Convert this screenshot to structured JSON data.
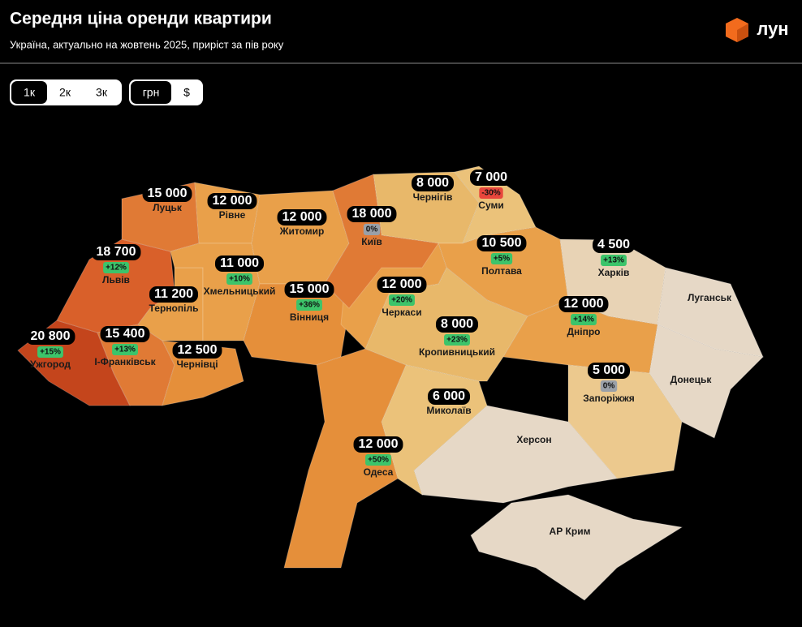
{
  "header": {
    "title": "Середня ціна оренди квартири",
    "subtitle": "Україна, актуально на жовтень 2025, приріст за пів року",
    "logo": "лун"
  },
  "tabs": {
    "rooms": [
      "1к",
      "2к",
      "3к"
    ],
    "currency": [
      "грн",
      "$"
    ]
  },
  "regions": [
    {
      "name": "Луцьк",
      "price": "15 000"
    },
    {
      "name": "Рівне",
      "price": "12 000"
    },
    {
      "name": "Житомир",
      "price": "12 000"
    },
    {
      "name": "Київ",
      "price": "18 000",
      "change": "0%"
    },
    {
      "name": "Чернігів",
      "price": "8 000"
    },
    {
      "name": "Суми",
      "price": "7 000",
      "change": "-30%"
    },
    {
      "name": "Львів",
      "price": "18 700",
      "change": "+12%"
    },
    {
      "name": "Хмельницький",
      "price": "11 000",
      "change": "+10%"
    },
    {
      "name": "Тернопіль",
      "price": "11 200"
    },
    {
      "name": "Вінниця",
      "price": "15 000",
      "change": "+36%"
    },
    {
      "name": "Черкаси",
      "price": "12 000",
      "change": "+20%"
    },
    {
      "name": "Полтава",
      "price": "10 500",
      "change": "+5%"
    },
    {
      "name": "Харків",
      "price": "4 500",
      "change": "+13%"
    },
    {
      "name": "Луганськ"
    },
    {
      "name": "Ужгород",
      "price": "20 800",
      "change": "+15%"
    },
    {
      "name": "І-Франківськ",
      "price": "15 400",
      "change": "+13%"
    },
    {
      "name": "Чернівці",
      "price": "12 500"
    },
    {
      "name": "Кропивницький",
      "price": "8 000",
      "change": "+23%"
    },
    {
      "name": "Дніпро",
      "price": "12 000",
      "change": "+14%"
    },
    {
      "name": "Донецьк"
    },
    {
      "name": "Запоріжжя",
      "price": "5 000",
      "change": "0%"
    },
    {
      "name": "Миколаїв",
      "price": "6 000"
    },
    {
      "name": "Херсон"
    },
    {
      "name": "Одеса",
      "price": "12 000",
      "change": "+50%"
    },
    {
      "name": "АР Крим"
    }
  ]
}
